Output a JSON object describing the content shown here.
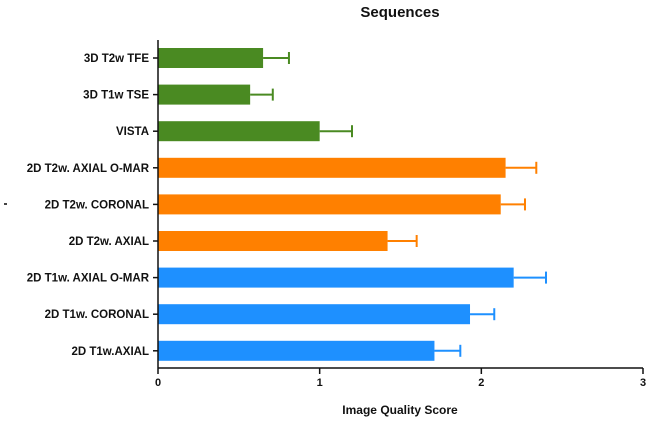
{
  "chart_data": {
    "type": "bar",
    "orientation": "horizontal",
    "title": "Sequences",
    "xlabel": "Image Quality Score",
    "ylabel": "",
    "xlim": [
      0,
      3
    ],
    "x_ticks": [
      "0",
      "1",
      "2",
      "3"
    ],
    "grid": false,
    "legend": "none",
    "categories": [
      "3D T2w TFE",
      "3D T1w TSE",
      "VISTA",
      "2D T2w. AXIAL O-MAR",
      "2D T2w. CORONAL",
      "2D T2w. AXIAL",
      "2D T1w. AXIAL O-MAR",
      "2D T1w. CORONAL",
      "2D T1w.AXIAL"
    ],
    "values": [
      0.65,
      0.57,
      1.0,
      2.15,
      2.12,
      1.42,
      2.2,
      1.93,
      1.71
    ],
    "error": [
      0.16,
      0.14,
      0.2,
      0.19,
      0.15,
      0.18,
      0.2,
      0.15,
      0.16
    ],
    "colors": [
      "#4a8a22",
      "#4a8a22",
      "#4a8a22",
      "#ff8000",
      "#ff8000",
      "#ff8000",
      "#1e90ff",
      "#1e90ff",
      "#1e90ff"
    ]
  }
}
